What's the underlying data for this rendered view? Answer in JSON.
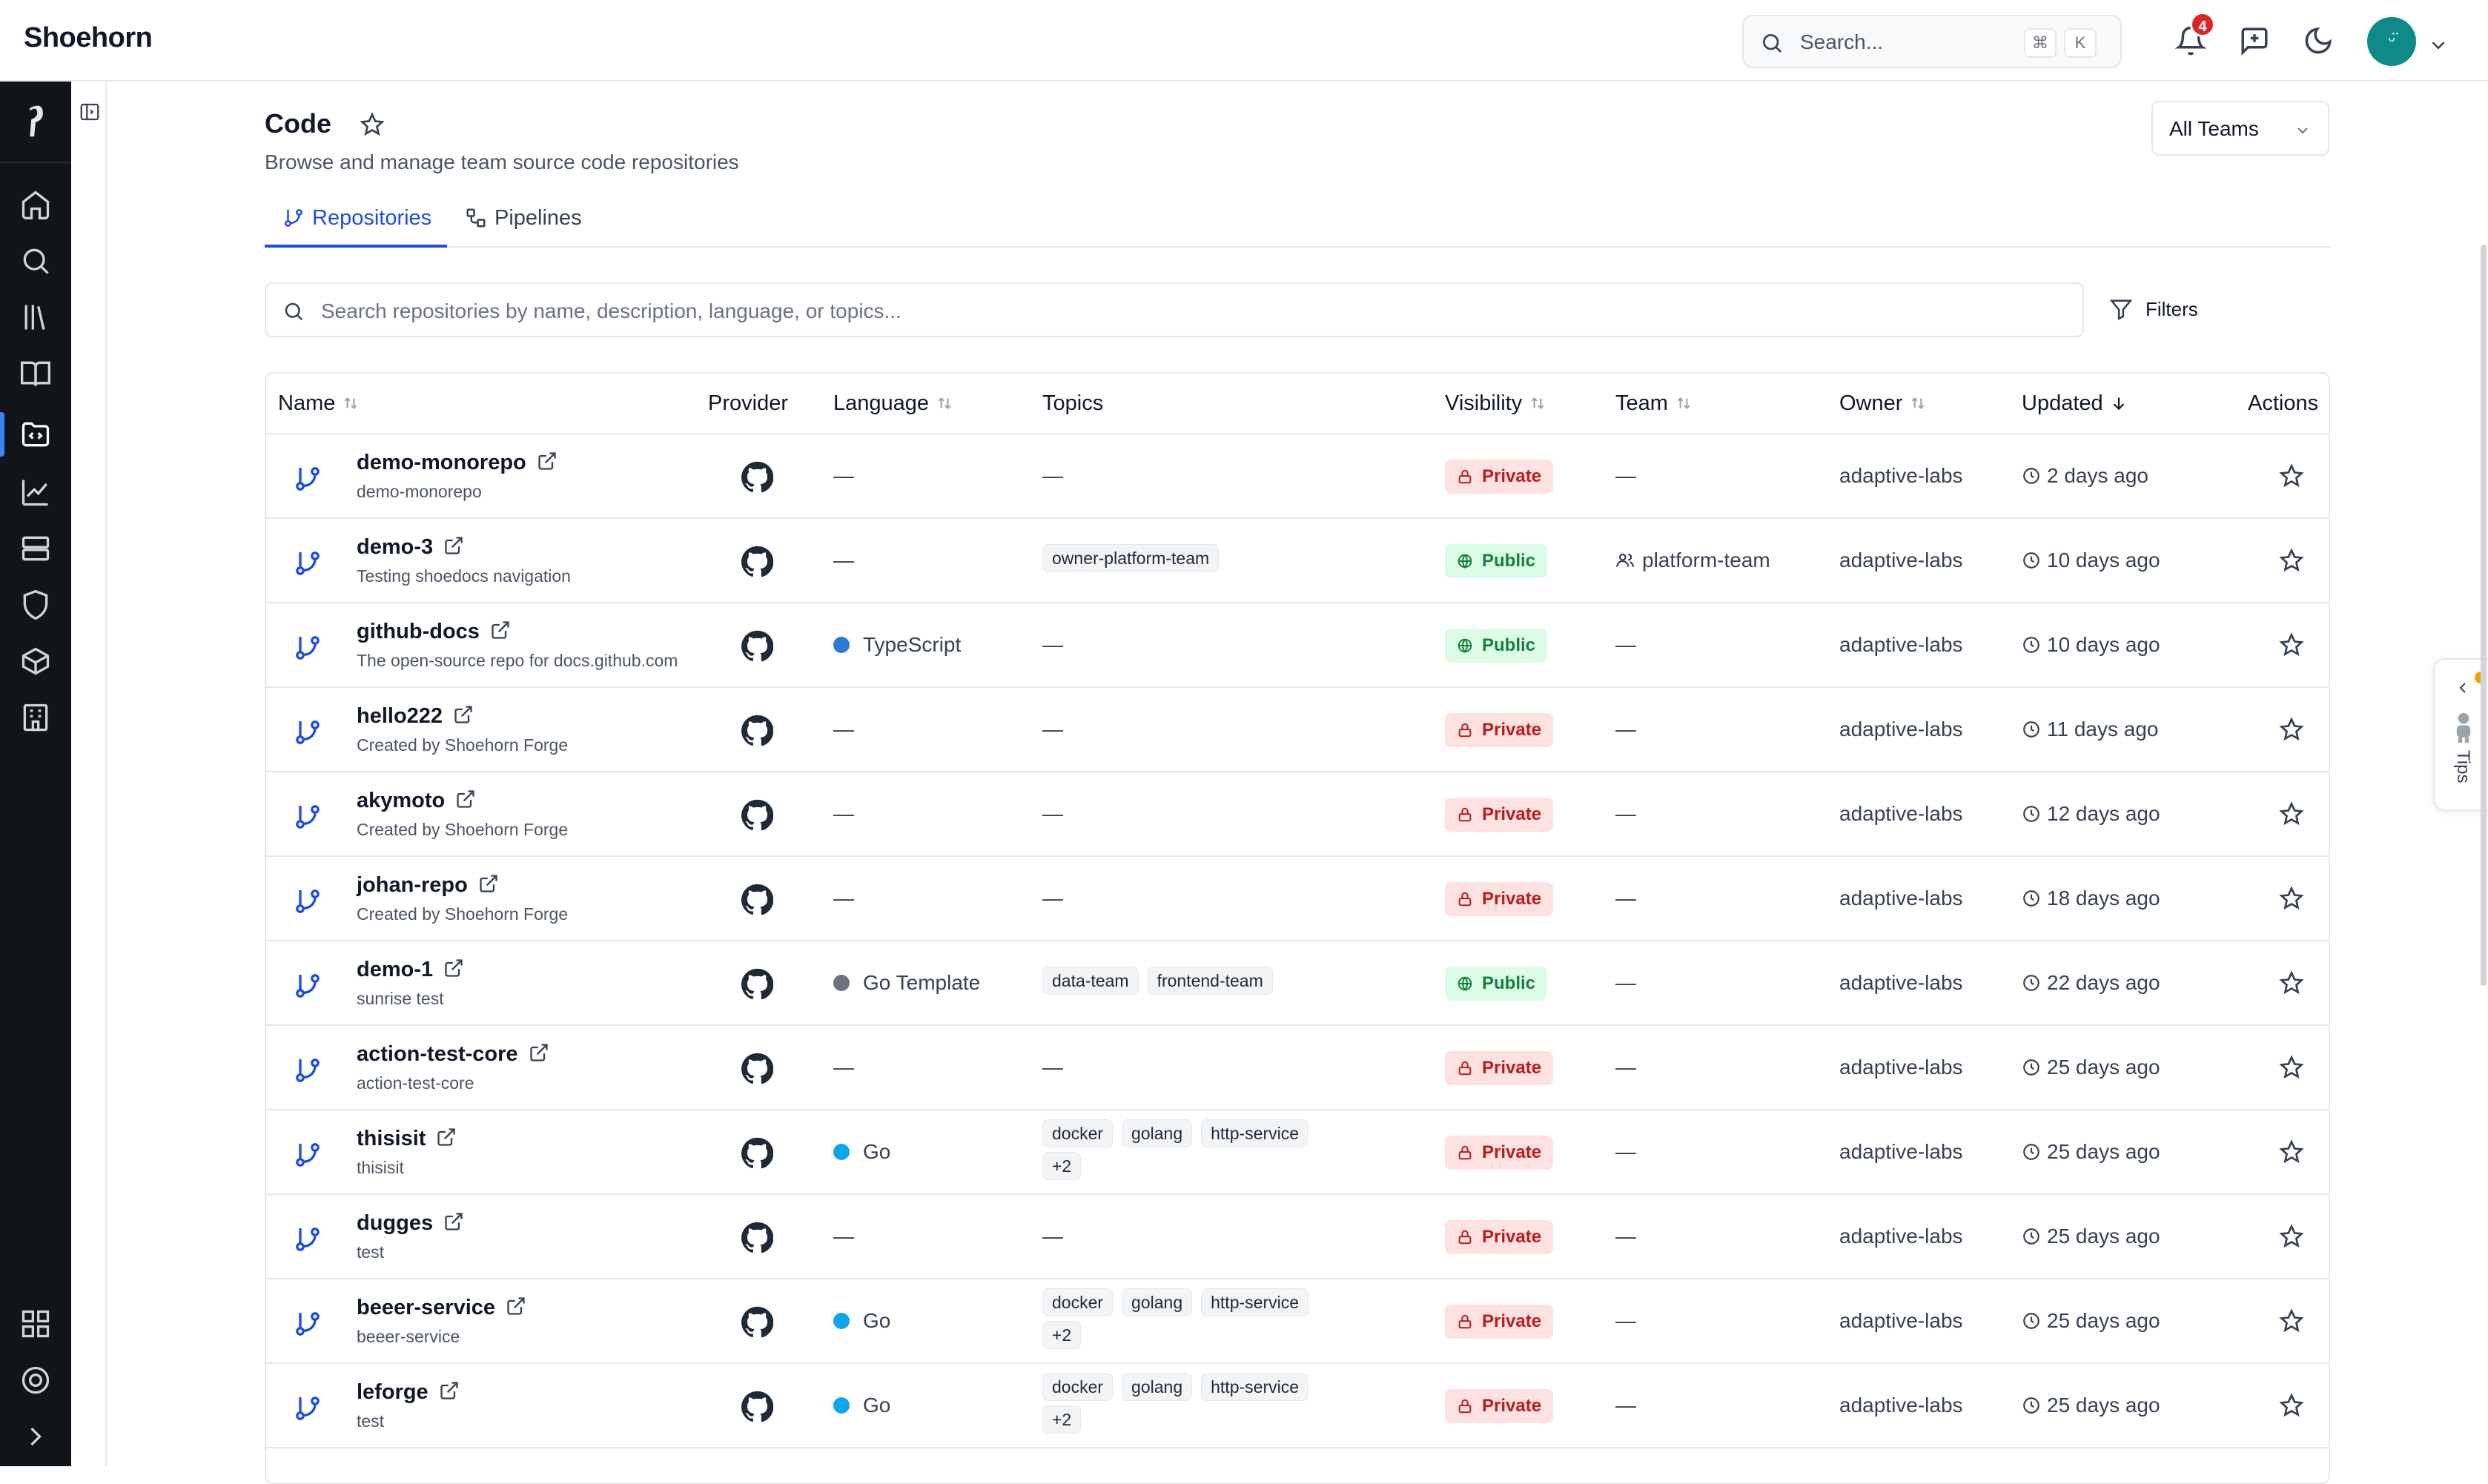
{
  "app": {
    "brand": "Shoehorn"
  },
  "topbar": {
    "search_placeholder": "Search...",
    "shortcut_mod": "⌘",
    "shortcut_key": "K",
    "notifications_count": "4",
    "avatar_glyph": "ᵕ̈"
  },
  "page": {
    "title": "Code",
    "subtitle": "Browse and manage team source code repositories",
    "team_filter": "All Teams"
  },
  "tabs": [
    {
      "label": "Repositories",
      "active": true
    },
    {
      "label": "Pipelines",
      "active": false
    }
  ],
  "repo_search": {
    "placeholder": "Search repositories by name, description, language, or topics...",
    "filters_label": "Filters"
  },
  "table": {
    "headers": {
      "name": "Name",
      "provider": "Provider",
      "language": "Language",
      "topics": "Topics",
      "visibility": "Visibility",
      "team": "Team",
      "owner": "Owner",
      "updated": "Updated",
      "actions": "Actions"
    },
    "rows": [
      {
        "name": "demo-monorepo",
        "desc": "demo-monorepo",
        "language": "—",
        "lang_color": "",
        "topics": [],
        "visibility": "Private",
        "team": "—",
        "owner": "adaptive-labs",
        "updated": "2 days ago"
      },
      {
        "name": "demo-3",
        "desc": "Testing shoedocs navigation",
        "language": "—",
        "lang_color": "",
        "topics": [
          "owner-platform-team"
        ],
        "visibility": "Public",
        "team": "platform-team",
        "owner": "adaptive-labs",
        "updated": "10 days ago"
      },
      {
        "name": "github-docs",
        "desc": "The open-source repo for docs.github.com",
        "language": "TypeScript",
        "lang_color": "#2b7bd0",
        "topics": [],
        "visibility": "Public",
        "team": "—",
        "owner": "adaptive-labs",
        "updated": "10 days ago"
      },
      {
        "name": "hello222",
        "desc": "Created by Shoehorn Forge",
        "language": "—",
        "lang_color": "",
        "topics": [],
        "visibility": "Private",
        "team": "—",
        "owner": "adaptive-labs",
        "updated": "11 days ago"
      },
      {
        "name": "akymoto",
        "desc": "Created by Shoehorn Forge",
        "language": "—",
        "lang_color": "",
        "topics": [],
        "visibility": "Private",
        "team": "—",
        "owner": "adaptive-labs",
        "updated": "12 days ago"
      },
      {
        "name": "johan-repo",
        "desc": "Created by Shoehorn Forge",
        "language": "—",
        "lang_color": "",
        "topics": [],
        "visibility": "Private",
        "team": "—",
        "owner": "adaptive-labs",
        "updated": "18 days ago"
      },
      {
        "name": "demo-1",
        "desc": "sunrise test",
        "language": "Go Template",
        "lang_color": "#6b7280",
        "topics": [
          "data-team",
          "frontend-team"
        ],
        "visibility": "Public",
        "team": "—",
        "owner": "adaptive-labs",
        "updated": "22 days ago"
      },
      {
        "name": "action-test-core",
        "desc": "action-test-core",
        "language": "—",
        "lang_color": "",
        "topics": [],
        "visibility": "Private",
        "team": "—",
        "owner": "adaptive-labs",
        "updated": "25 days ago"
      },
      {
        "name": "thisisit",
        "desc": "thisisit",
        "language": "Go",
        "lang_color": "#0ea5e9",
        "topics": [
          "docker",
          "golang",
          "http-service",
          "+2"
        ],
        "visibility": "Private",
        "team": "—",
        "owner": "adaptive-labs",
        "updated": "25 days ago"
      },
      {
        "name": "dugges",
        "desc": "test",
        "language": "—",
        "lang_color": "",
        "topics": [],
        "visibility": "Private",
        "team": "—",
        "owner": "adaptive-labs",
        "updated": "25 days ago"
      },
      {
        "name": "beeer-service",
        "desc": "beeer-service",
        "language": "Go",
        "lang_color": "#0ea5e9",
        "topics": [
          "docker",
          "golang",
          "http-service",
          "+2"
        ],
        "visibility": "Private",
        "team": "—",
        "owner": "adaptive-labs",
        "updated": "25 days ago"
      },
      {
        "name": "leforge",
        "desc": "test",
        "language": "Go",
        "lang_color": "#0ea5e9",
        "topics": [
          "docker",
          "golang",
          "http-service",
          "+2"
        ],
        "visibility": "Private",
        "team": "—",
        "owner": "adaptive-labs",
        "updated": "25 days ago"
      }
    ]
  },
  "tips": {
    "label": "Tips"
  },
  "colors": {
    "accent": "#1d4ed8",
    "rail": "#111418",
    "private_bg": "#fee2e2",
    "private_fg": "#b91c1c",
    "public_bg": "#dcfce7",
    "public_fg": "#15803d"
  },
  "icons": {
    "rail": [
      "logo-icon",
      "home-icon",
      "search-icon",
      "library-icon",
      "book-icon",
      "code-folder-icon",
      "chart-icon",
      "server-icon",
      "shield-icon",
      "package-icon",
      "building-icon",
      "grid-icon",
      "help-circle-icon",
      "chevron-right-icon"
    ]
  }
}
